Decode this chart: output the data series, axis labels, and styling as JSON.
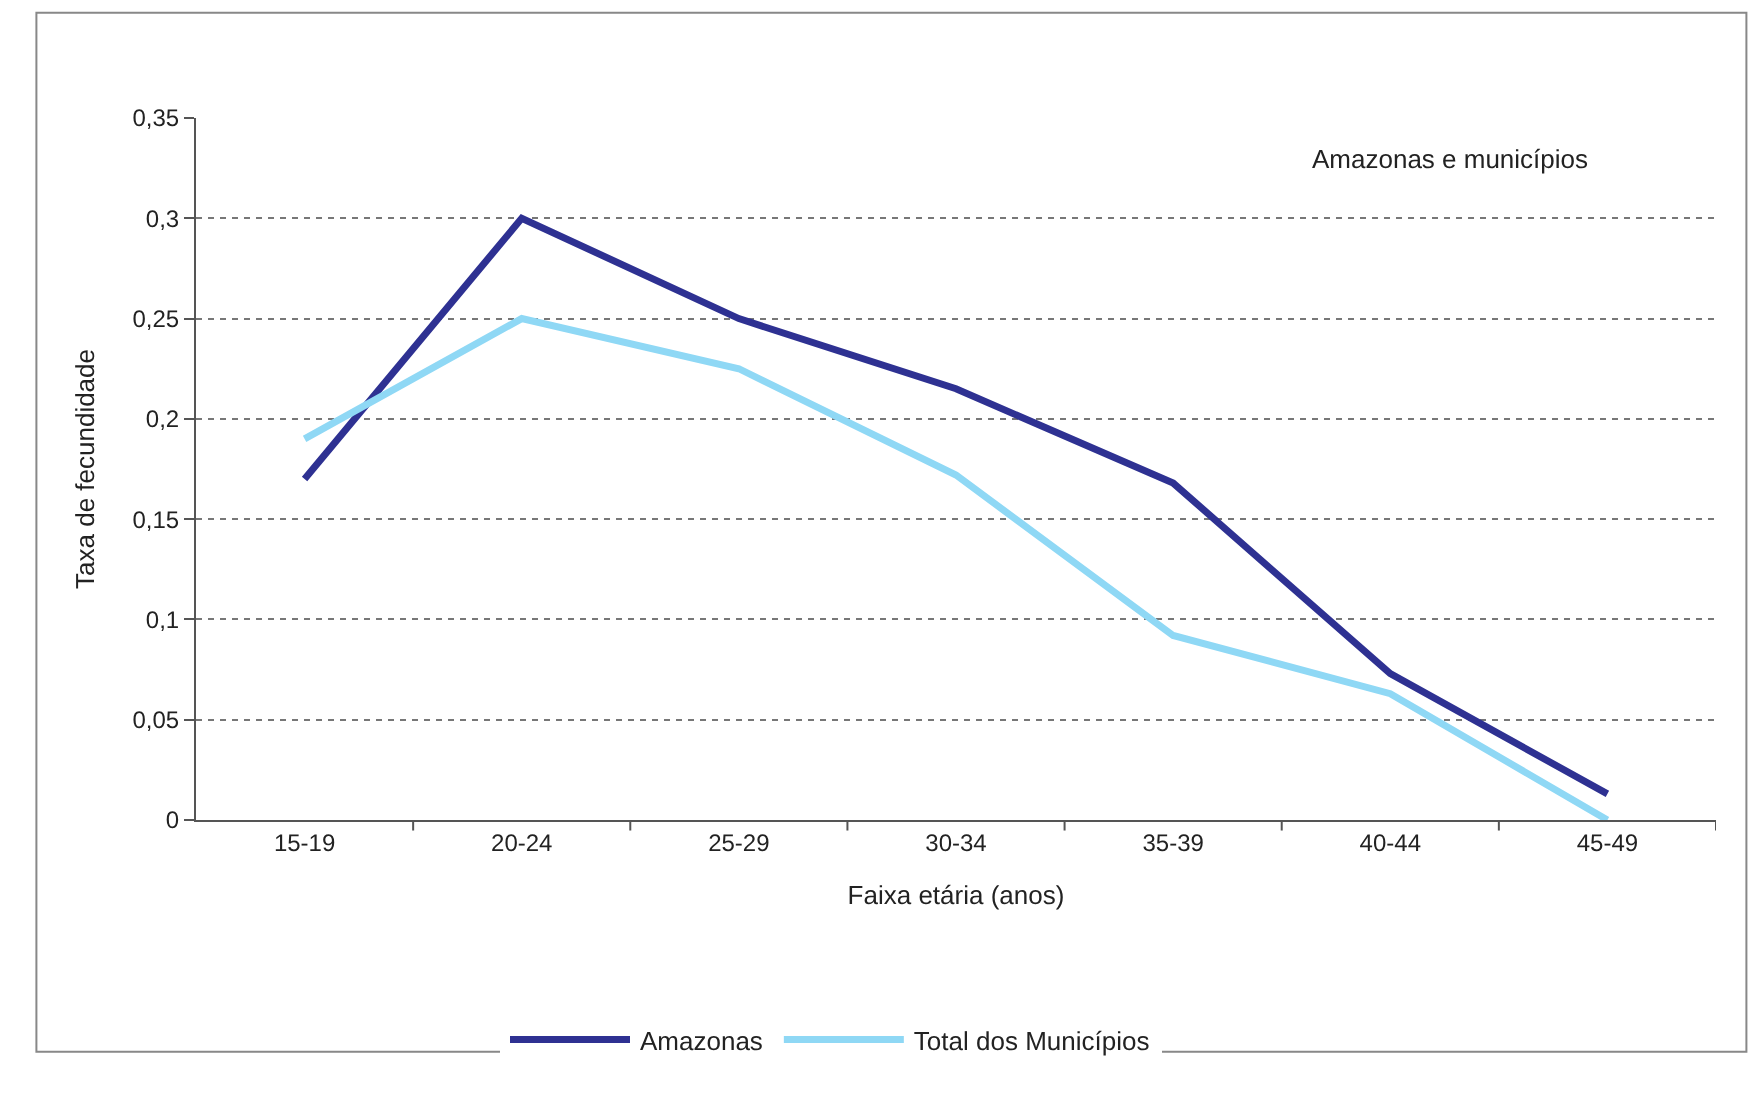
{
  "chart_data": {
    "type": "line",
    "xlabel": "Faixa etária (anos)",
    "ylabel": "Taxa de fecundidade",
    "annotations": [
      "Amazonas e municípios"
    ],
    "categories": [
      "15-19",
      "20-24",
      "25-29",
      "30-34",
      "35-39",
      "40-44",
      "45-49"
    ],
    "series": [
      {
        "name": "Amazonas",
        "color": "#2e3192",
        "values": [
          0.17,
          0.3,
          0.25,
          0.215,
          0.168,
          0.073,
          0.013
        ]
      },
      {
        "name": "Total dos Municípios",
        "color": "#8fd8f5",
        "values": [
          0.19,
          0.25,
          0.225,
          0.172,
          0.092,
          0.063,
          0.0
        ]
      }
    ],
    "ylim": [
      0,
      0.35
    ],
    "yticks": [
      0,
      {
        "value": 0.05,
        "label": "0,05"
      },
      {
        "value": 0.1,
        "label": "0,1"
      },
      {
        "value": 0.15,
        "label": "0,15"
      },
      {
        "value": 0.2,
        "label": "0,2"
      },
      {
        "value": 0.25,
        "label": "0,25"
      },
      {
        "value": 0.3,
        "label": "0,3"
      },
      {
        "value": 0.35,
        "label": "0,35"
      }
    ],
    "grid": "y",
    "legend": "bottom",
    "marker": "none",
    "line_style": "solid"
  }
}
